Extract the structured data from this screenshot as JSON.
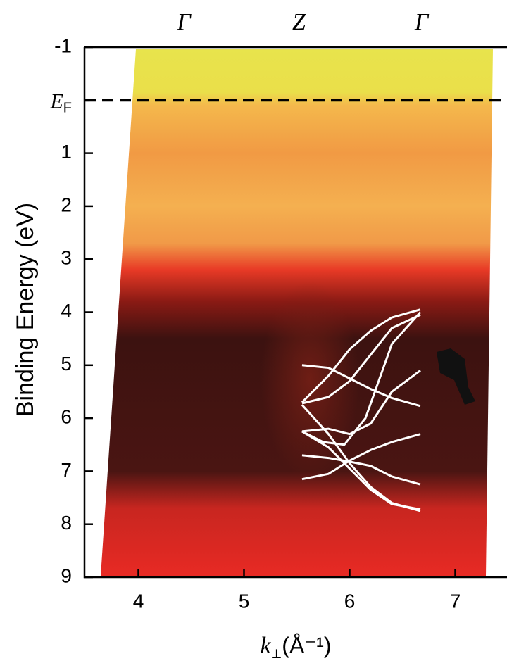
{
  "chart_data": {
    "type": "line",
    "ylabel": "Binding Energy (eV)",
    "xlabel": {
      "symbol": "k",
      "subscript": "⊥",
      "unit": "(Å⁻¹)"
    },
    "xlim": [
      3.49,
      7.49
    ],
    "xticks": [
      4,
      5,
      6,
      7
    ],
    "ylim": [
      -1,
      9
    ],
    "yticks": [
      -1,
      1,
      2,
      3,
      4,
      5,
      6,
      7,
      8,
      9
    ],
    "y_inverted": true,
    "x2ticks": [
      {
        "value": 4.43,
        "label": "Γ"
      },
      {
        "value": 5.52,
        "label": "Z"
      },
      {
        "value": 6.68,
        "label": "Γ"
      }
    ],
    "fermi_level": {
      "value": 0,
      "symbol": "E",
      "subscript": "F"
    },
    "series": [
      {
        "color": "#ffffff",
        "x": [
          5.55,
          5.8,
          6.0,
          6.2,
          6.4,
          6.67
        ],
        "values": [
          5.7,
          5.2,
          4.7,
          4.35,
          4.1,
          3.95
        ]
      },
      {
        "color": "#ffffff",
        "x": [
          5.55,
          5.8,
          6.0,
          6.2,
          6.4,
          6.67
        ],
        "values": [
          5.72,
          5.6,
          5.3,
          4.8,
          4.3,
          4.05
        ]
      },
      {
        "color": "#ffffff",
        "x": [
          5.55,
          5.8,
          6.0,
          6.2,
          6.4,
          6.67
        ],
        "values": [
          5.0,
          5.05,
          5.25,
          5.45,
          5.62,
          5.77
        ]
      },
      {
        "color": "#ffffff",
        "x": [
          5.55,
          5.8,
          6.0,
          6.2,
          6.4,
          6.67
        ],
        "values": [
          6.25,
          6.2,
          6.3,
          6.1,
          5.5,
          5.1
        ]
      },
      {
        "color": "#ffffff",
        "x": [
          5.55,
          5.75,
          5.95,
          6.15,
          6.4,
          6.67
        ],
        "values": [
          6.25,
          6.45,
          6.5,
          6.0,
          4.6,
          4.0
        ]
      },
      {
        "color": "#ffffff",
        "x": [
          5.55,
          5.8,
          6.0,
          6.2,
          6.4,
          6.67
        ],
        "values": [
          6.7,
          6.75,
          6.82,
          6.9,
          7.1,
          7.25
        ]
      },
      {
        "color": "#ffffff",
        "x": [
          5.55,
          5.8,
          6.0,
          6.2,
          6.4,
          6.67
        ],
        "values": [
          7.15,
          7.05,
          6.8,
          6.6,
          6.45,
          6.3
        ]
      },
      {
        "color": "#ffffff",
        "x": [
          5.55,
          5.8,
          6.0,
          6.2,
          6.4,
          6.67
        ],
        "values": [
          5.75,
          6.3,
          6.85,
          7.3,
          7.6,
          7.75
        ]
      },
      {
        "color": "#ffffff",
        "x": [
          5.55,
          5.8,
          6.0,
          6.2,
          6.4,
          6.67
        ],
        "values": [
          6.25,
          6.55,
          6.95,
          7.35,
          7.62,
          7.72
        ]
      }
    ]
  }
}
